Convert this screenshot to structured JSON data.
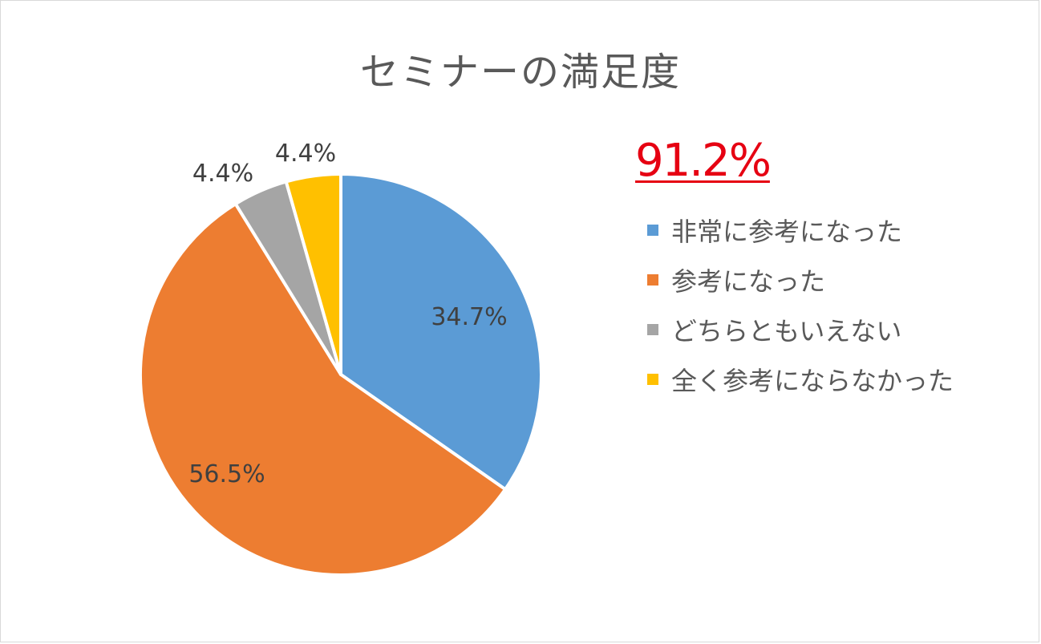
{
  "chart_data": {
    "type": "pie",
    "title": "セミナーの満足度",
    "categories": [
      "非常に参考になった",
      "参考になった",
      "どちらともいえない",
      "全く参考にならなかった"
    ],
    "values": [
      34.7,
      56.5,
      4.4,
      4.4
    ],
    "data_labels": [
      "34.7%",
      "56.5%",
      "4.4%",
      "4.4%"
    ],
    "colors": [
      "#5b9bd5",
      "#ed7d31",
      "#a5a5a5",
      "#ffc000"
    ],
    "legend_position": "right",
    "start_angle_deg": 0,
    "direction": "clockwise"
  },
  "highlight": {
    "text": "91.2%",
    "color": "#e60012"
  }
}
